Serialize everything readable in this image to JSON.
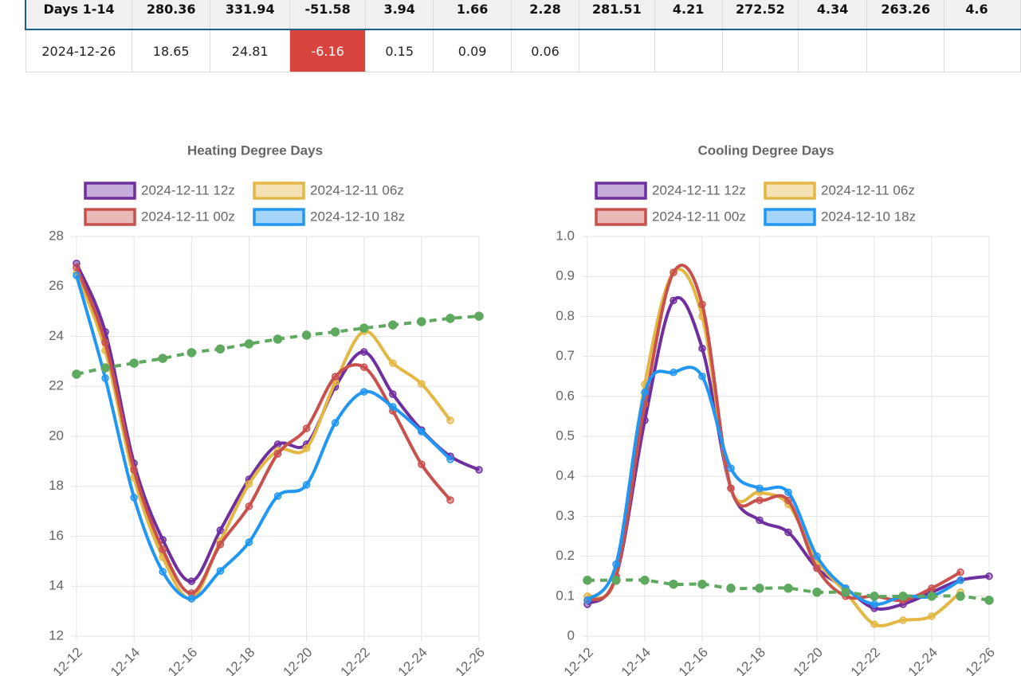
{
  "table": {
    "rows": [
      [
        "Days 1-14",
        "280.36",
        "331.94",
        "-51.58",
        "3.94",
        "1.66",
        "2.28",
        "281.51",
        "4.21",
        "272.52",
        "4.34",
        "263.26",
        "4.6"
      ],
      [
        "2024-12-26",
        "18.65",
        "24.81",
        "-6.16",
        "0.15",
        "0.09",
        "0.06"
      ]
    ]
  },
  "chart_data": [
    {
      "type": "line",
      "title": "Heating Degree Days",
      "categories": [
        "12-12",
        null,
        "12-14",
        null,
        "12-16",
        null,
        "12-18",
        null,
        "12-20",
        null,
        "12-22",
        null,
        "12-24",
        null,
        "12-26"
      ],
      "series": [
        {
          "name": "2024-12-11 12z",
          "color": "#6f2f9f",
          "values": [
            26.92,
            24.18,
            18.92,
            15.86,
            14.2,
            16.24,
            18.28,
            19.68,
            19.68,
            21.98,
            23.38,
            21.69,
            20.25,
            19.2,
            18.66
          ]
        },
        {
          "name": "2024-12-11 06z",
          "color": "#e3b744",
          "values": [
            26.53,
            23.44,
            18.34,
            15.16,
            13.5,
            15.8,
            18.09,
            19.43,
            19.52,
            22.17,
            24.2,
            22.93,
            22.1,
            20.64,
            null
          ]
        },
        {
          "name": "2024-12-11 00z",
          "color": "#c8504d",
          "values": [
            26.76,
            23.76,
            18.66,
            15.47,
            13.72,
            15.67,
            17.2,
            19.3,
            20.32,
            22.39,
            22.77,
            21.02,
            18.88,
            17.45,
            null
          ]
        },
        {
          "name": "2024-12-10 18z",
          "color": "#2196f3",
          "values": [
            26.44,
            22.33,
            17.55,
            14.58,
            13.5,
            14.61,
            15.76,
            17.61,
            18.06,
            20.54,
            21.78,
            21.18,
            20.19,
            19.08,
            null
          ]
        },
        {
          "color": "#5fa85f",
          "dashed": true,
          "values": [
            22.49,
            22.74,
            22.93,
            23.12,
            23.35,
            23.5,
            23.7,
            23.89,
            24.05,
            24.18,
            24.33,
            24.46,
            24.59,
            24.72,
            24.81
          ]
        }
      ],
      "ylim": [
        12,
        28
      ],
      "yticks": [
        12,
        14,
        16,
        18,
        20,
        22,
        24,
        26,
        28
      ],
      "grid": true
    },
    {
      "type": "line",
      "title": "Cooling Degree Days",
      "categories": [
        "12-12",
        null,
        "12-14",
        null,
        "12-16",
        null,
        "12-18",
        null,
        "12-20",
        null,
        "12-22",
        null,
        "12-24",
        null,
        "12-26"
      ],
      "series": [
        {
          "name": "2024-12-11 12z",
          "color": "#6f2f9f",
          "values": [
            0.08,
            0.15,
            0.54,
            0.84,
            0.72,
            0.37,
            0.29,
            0.26,
            0.17,
            0.12,
            0.07,
            0.08,
            0.11,
            0.14,
            0.15
          ]
        },
        {
          "name": "2024-12-11 06z",
          "color": "#e3b744",
          "values": [
            0.1,
            0.15,
            0.63,
            0.91,
            0.8,
            0.37,
            0.36,
            0.33,
            0.19,
            0.11,
            0.03,
            0.04,
            0.05,
            0.11,
            null
          ]
        },
        {
          "name": "2024-12-11 00z",
          "color": "#c8504d",
          "values": [
            0.09,
            0.15,
            0.58,
            0.91,
            0.83,
            0.37,
            0.34,
            0.34,
            0.17,
            0.1,
            0.1,
            0.09,
            0.12,
            0.16,
            null
          ]
        },
        {
          "name": "2024-12-10 18z",
          "color": "#2196f3",
          "values": [
            0.09,
            0.18,
            0.61,
            0.66,
            0.65,
            0.42,
            0.37,
            0.36,
            0.2,
            0.12,
            0.08,
            0.1,
            0.1,
            0.14,
            null
          ]
        },
        {
          "color": "#5fa85f",
          "dashed": true,
          "values": [
            0.14,
            0.14,
            0.14,
            0.13,
            0.13,
            0.12,
            0.12,
            0.12,
            0.11,
            0.11,
            0.1,
            0.1,
            0.1,
            0.1,
            0.09
          ]
        }
      ],
      "ylim": [
        0,
        1
      ],
      "yticks": [
        0,
        0.1,
        0.2,
        0.3,
        0.4,
        0.5,
        0.6,
        0.7,
        0.8,
        0.9,
        {
          "value": 1,
          "label": "1.0"
        }
      ],
      "grid": true
    }
  ]
}
